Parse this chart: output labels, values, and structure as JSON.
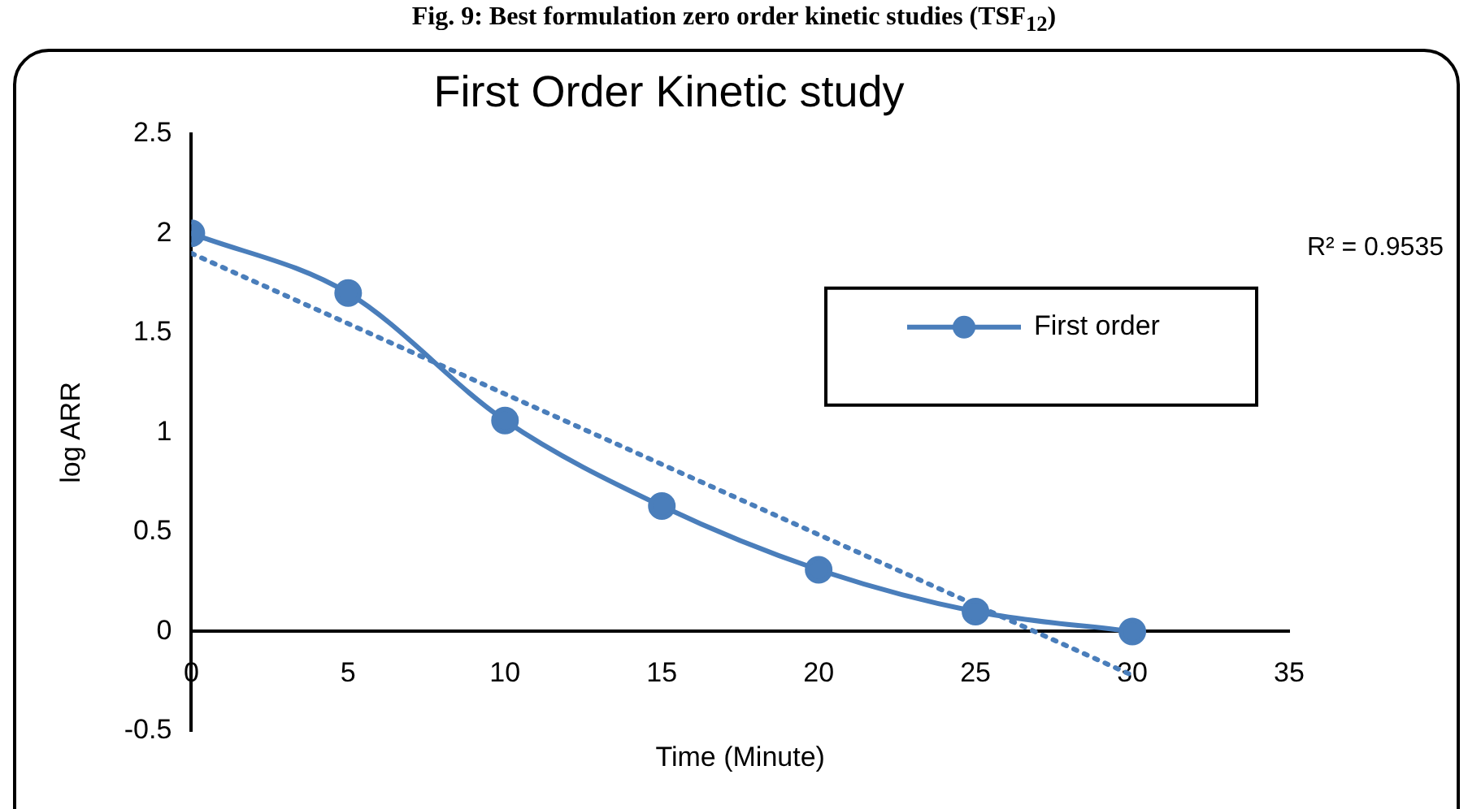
{
  "chart_data": {
    "type": "line",
    "title": "First Order Kinetic study",
    "xlabel": "Time (Minute)",
    "ylabel": "log ARR",
    "annotations": [
      "Fig. 9: Best formulation zero order kinetic studies (TSF$_{12}$)",
      "R² = 0.9535"
    ],
    "x": [
      0,
      5,
      10,
      15,
      20,
      25,
      30
    ],
    "series": [
      {
        "name": "First order",
        "color": "#4a7ebb",
        "values": [
          2,
          1.7,
          1.06,
          0.63,
          0.31,
          0.1,
          0
        ],
        "marker": "circle",
        "line_style": "solid"
      },
      {
        "type": "line",
        "color": "#4a7ebb",
        "x": [
          0,
          30
        ],
        "values": [
          1.9,
          -0.22
        ],
        "marker": "none",
        "line_style": "dotted"
      }
    ],
    "xlim": [
      0,
      35
    ],
    "xticks": [
      0,
      5,
      10,
      15,
      20,
      25,
      30,
      35
    ],
    "ylim": [
      -0.5,
      2.5
    ],
    "yticks": [
      -0.5,
      0,
      0.5,
      1,
      1.5,
      2,
      2.5
    ],
    "grid": false,
    "legend": "right"
  }
}
